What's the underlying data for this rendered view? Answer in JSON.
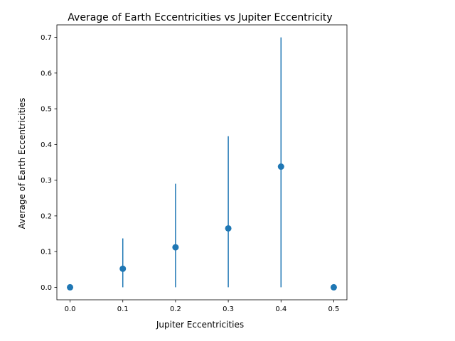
{
  "chart_data": {
    "type": "scatter",
    "title": "Average of Earth Eccentricities vs Jupiter Eccentricity",
    "xlabel": "Jupiter Eccentricities",
    "ylabel": "Average of Earth Eccentricities",
    "xlim": [
      -0.025,
      0.525
    ],
    "ylim": [
      -0.035,
      0.735
    ],
    "xticks": [
      0.0,
      0.1,
      0.2,
      0.3,
      0.4,
      0.5
    ],
    "xtick_labels": [
      "0.0",
      "0.1",
      "0.2",
      "0.3",
      "0.4",
      "0.5"
    ],
    "yticks": [
      0.0,
      0.1,
      0.2,
      0.3,
      0.4,
      0.5,
      0.6,
      0.7
    ],
    "ytick_labels": [
      "0.0",
      "0.1",
      "0.2",
      "0.3",
      "0.4",
      "0.5",
      "0.6",
      "0.7"
    ],
    "grid": false,
    "series": [
      {
        "name": "Average of Earth Eccentricities",
        "color": "#1f77b4",
        "x": [
          0.0,
          0.1,
          0.2,
          0.3,
          0.4,
          0.5
        ],
        "y": [
          0.0,
          0.052,
          0.112,
          0.165,
          0.338,
          0.0
        ],
        "error_low": [
          0.0,
          0.0,
          0.0,
          0.0,
          0.0,
          0.0
        ],
        "error_high": [
          0.0,
          0.137,
          0.29,
          0.423,
          0.7,
          0.0
        ]
      }
    ]
  }
}
